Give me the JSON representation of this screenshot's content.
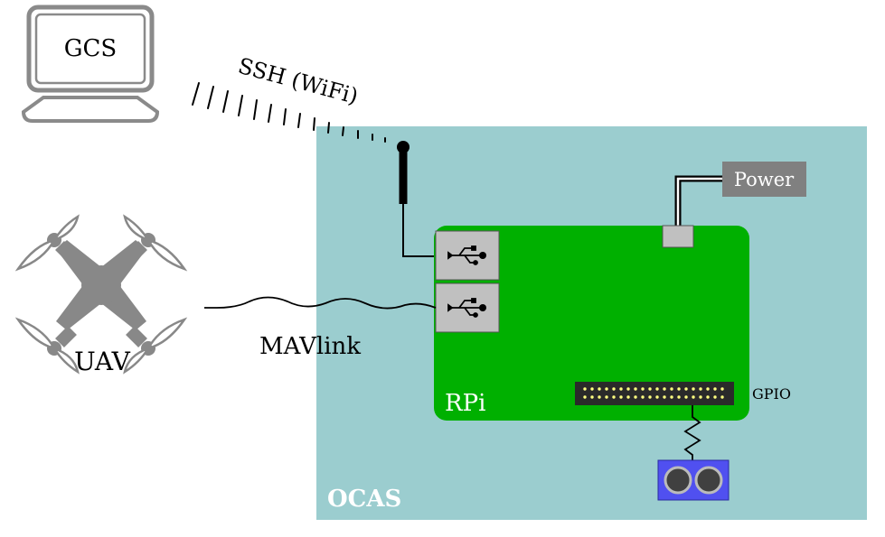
{
  "labels": {
    "gcs": "GCS",
    "ssh": "SSH (WiFi)",
    "power": "Power",
    "uav": "UAV",
    "mavlink": "MAVlink",
    "rpi": "RPi",
    "gpio": "GPIO",
    "ocas": "OCAS"
  },
  "icons": {
    "computer": "computer-icon",
    "drone": "quadcopter-icon",
    "usb": "usb-icon",
    "antenna": "antenna-icon",
    "sensor": "ultrasonic-sensor-icon"
  },
  "colors": {
    "ocas_panel": "#9bcdcf",
    "rpi_board": "#00b000",
    "usb_port": "#c0c0c0",
    "power_box": "#808080",
    "gpio_header": "#2a2a2a",
    "gpio_pin": "#ffff80",
    "sensor_body": "#5050f0",
    "drone_body": "#808080"
  }
}
